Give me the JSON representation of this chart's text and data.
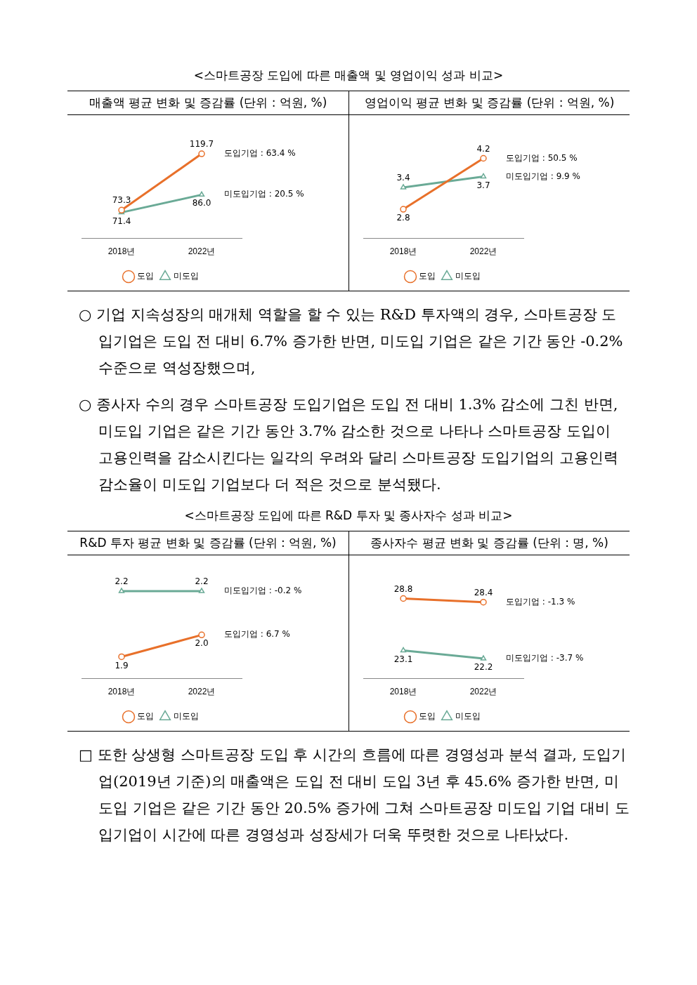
{
  "chart_data": [
    {
      "type": "line",
      "title": "매출액 평균 변화 및 증감률 (단위 : 억원, %)",
      "categories": [
        "2018년",
        "2022년"
      ],
      "series": [
        {
          "name": "도입",
          "color": "#e8702a",
          "marker": "circle",
          "values": [
            73.3,
            119.7
          ],
          "value_labels": [
            "73.3",
            "119.7"
          ]
        },
        {
          "name": "미도입",
          "color": "#6aaa96",
          "marker": "triangle",
          "values": [
            71.4,
            86.0
          ],
          "value_labels": [
            "71.4",
            "86.0"
          ]
        }
      ],
      "annotations": [
        "<스마트공장 도입에 따른 매출액 및 영업이익 성과 비교>",
        {
          "text": "도입기업 : 63.4 %",
          "x": "2022년",
          "y": 119.7
        },
        {
          "text": "미도입기업 : 20.5 %",
          "x": "2022년",
          "y": 86.0
        }
      ],
      "legend": "bottom",
      "grid": false,
      "tick_labels": "x"
    },
    {
      "type": "line",
      "title": "영업이익 평균 변화 및 증감률 (단위 : 억원, %)",
      "categories": [
        "2018년",
        "2022년"
      ],
      "series": [
        {
          "name": "도입",
          "color": "#e8702a",
          "marker": "circle",
          "values": [
            2.8,
            4.2
          ],
          "value_labels": [
            "2.8",
            "4.2"
          ]
        },
        {
          "name": "미도입",
          "color": "#6aaa96",
          "marker": "triangle",
          "values": [
            3.4,
            3.7
          ],
          "value_labels": [
            "3.4",
            "3.7"
          ]
        }
      ],
      "annotations": [
        "○ 기업 지속성장의 매개체 역할을 할 수 있는 R&D 투자액의 경우, 스마트공장 도입기업은 도입 전 대비 6.7% 증가한 반면, 미도입 기업은 같은 기간 동안 -0.2% 수준으로 역성장했으며,",
        "○ 종사자 수의 경우 스마트공장 도입기업은 도입 전 대비 1.3% 감소에 그친 반면, 미도입 기업은 같은 기간 동안 3.7% 감소한 것으로 나타나 스마트공장 도입이 고용인력을 감소시킨다는 일각의 우려와 달리 스마트공장 도입기업의 고용인력 감소율이 미도입 기업보다 더 적은 것으로 분석됐다.",
        {
          "text": "도입기업 : 50.5 %",
          "x": "2022년",
          "y": 4.2
        },
        {
          "text": "미도입기업 : 9.9 %",
          "x": "2022년",
          "y": 3.7
        }
      ],
      "legend": "bottom",
      "grid": false,
      "tick_labels": "x"
    },
    {
      "type": "line",
      "title": "R&D 투자 평균 변화 및 증감률 (단위 : 억원, %)",
      "categories": [
        "2018년",
        "2022년"
      ],
      "series": [
        {
          "name": "도입",
          "color": "#e8702a",
          "marker": "circle",
          "values": [
            1.9,
            2.0
          ],
          "value_labels": [
            "1.9",
            "2.0"
          ]
        },
        {
          "name": "미도입",
          "color": "#6aaa96",
          "marker": "triangle",
          "values": [
            2.2,
            2.2
          ],
          "value_labels": [
            "2.2",
            "2.2"
          ]
        }
      ],
      "annotations": [
        "<스마트공장 도입에 따른 R&D 투자 및 종사자수 성과 비교>",
        {
          "text": "미도입기업 : -0.2 %",
          "x": "2022년",
          "y": 2.2
        },
        {
          "text": "도입기업 : 6.7 %",
          "x": "2022년",
          "y": 2.0
        }
      ],
      "legend": "bottom",
      "grid": false,
      "tick_labels": "x"
    },
    {
      "type": "line",
      "title": "종사자수 평균 변화 및 증감률 (단위 : 명, %)",
      "categories": [
        "2018년",
        "2022년"
      ],
      "series": [
        {
          "name": "도입",
          "color": "#e8702a",
          "marker": "circle",
          "values": [
            28.8,
            28.4
          ],
          "value_labels": [
            "28.8",
            "28.4"
          ]
        },
        {
          "name": "미도입",
          "color": "#6aaa96",
          "marker": "triangle",
          "values": [
            23.1,
            22.2
          ],
          "value_labels": [
            "23.1",
            "22.2"
          ]
        }
      ],
      "annotations": [
        "□ 또한 상생형 스마트공장 도입 후 시간의 흐름에 따른 경영성과 분석 결과, 도입기업(2019년 기준)의 매출액은 도입 전 대비 도입 3년 후 45.6% 증가한 반면, 미도입 기업은 같은 기간 동안 20.5% 증가에 그쳐 스마트공장 미도입 기업 대비 도입기업이 시간에 따른 경영성과 성장세가 더욱 뚜렷한 것으로 나타났다.",
        {
          "text": "도입기업 : -1.3 %",
          "x": "2022년",
          "y": 28.4
        },
        {
          "text": "미도입기업 : -3.7 %",
          "x": "2022년",
          "y": 22.2
        }
      ],
      "legend": "bottom",
      "grid": false,
      "tick_labels": "x"
    }
  ]
}
